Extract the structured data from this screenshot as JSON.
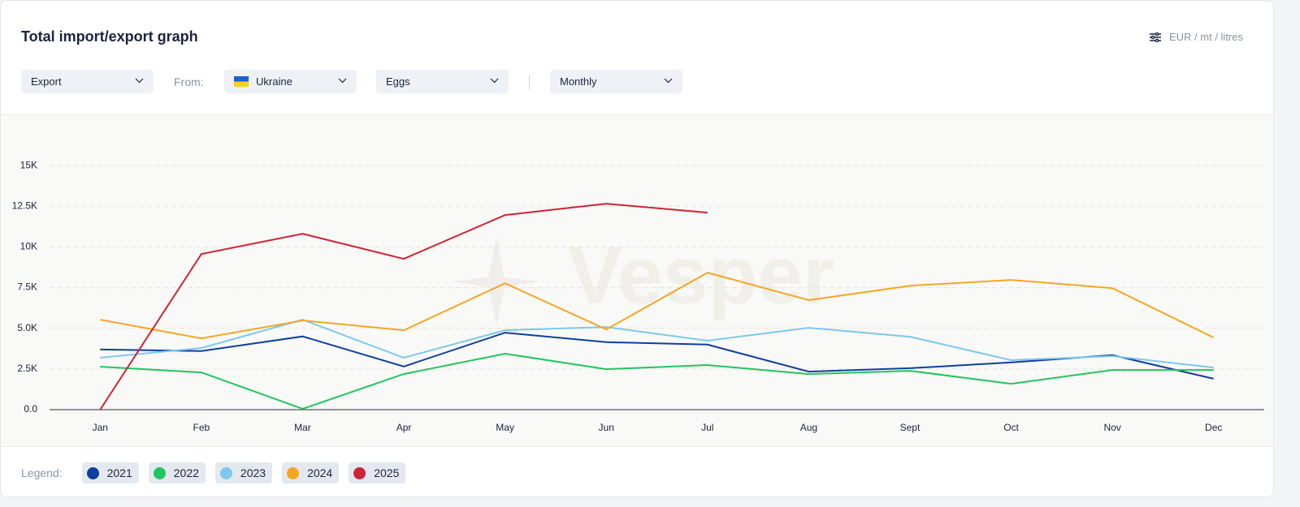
{
  "header": {
    "title": "Total import/export graph",
    "units": "EUR / mt / litres"
  },
  "controls": {
    "flow": "Export",
    "from_label": "From:",
    "country": "Ukraine",
    "product": "Eggs",
    "period": "Monthly"
  },
  "chart_data": {
    "type": "line",
    "watermark": "Vesper",
    "categories": [
      "Jan",
      "Feb",
      "Mar",
      "Apr",
      "May",
      "Jun",
      "Jul",
      "Aug",
      "Sept",
      "Oct",
      "Nov",
      "Dec"
    ],
    "series": [
      {
        "name": "2021",
        "color": "#0d3f9c",
        "values": [
          3700,
          3600,
          4500,
          2650,
          4730,
          4150,
          4000,
          2340,
          2550,
          2900,
          3350,
          1900
        ]
      },
      {
        "name": "2022",
        "color": "#22c55e",
        "values": [
          2640,
          2290,
          50,
          2190,
          3440,
          2490,
          2740,
          2190,
          2390,
          1590,
          2440,
          2440
        ]
      },
      {
        "name": "2023",
        "color": "#7dc8ec",
        "values": [
          3190,
          3790,
          5530,
          3190,
          4880,
          5080,
          4240,
          5030,
          4480,
          3040,
          3290,
          2590
        ]
      },
      {
        "name": "2024",
        "color": "#f5a623",
        "values": [
          5530,
          4380,
          5480,
          4880,
          7770,
          4930,
          8420,
          6730,
          7620,
          7970,
          7470,
          4430
        ]
      },
      {
        "name": "2025",
        "color": "#cf2336",
        "values": [
          0,
          9570,
          10810,
          9270,
          11960,
          12660,
          12110,
          null,
          null,
          null,
          null,
          null
        ]
      }
    ],
    "ylim": [
      0,
      17500
    ],
    "yticks": [
      {
        "value": 0,
        "label": "0.0"
      },
      {
        "value": 2500,
        "label": "2.5K"
      },
      {
        "value": 5000,
        "label": "5.0K"
      },
      {
        "value": 7500,
        "label": "7.5K"
      },
      {
        "value": 10000,
        "label": "10K"
      },
      {
        "value": 12500,
        "label": "12.5K"
      },
      {
        "value": 15000,
        "label": "15K"
      }
    ],
    "grid": true,
    "legend_label": "Legend:"
  }
}
